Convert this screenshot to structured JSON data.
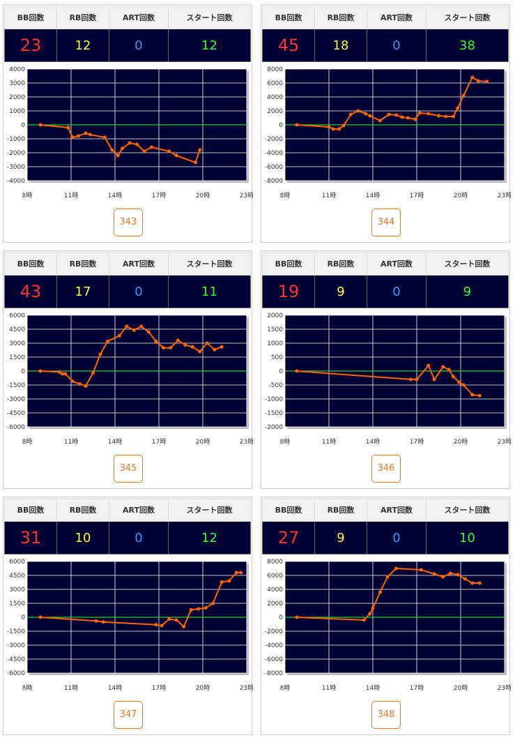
{
  "headers": {
    "bb": "BB回数",
    "rb": "RB回数",
    "art": "ART回数",
    "start": "スタート回数"
  },
  "colors": {
    "bg": "#000033",
    "line": "#ff6600",
    "zero": "#33cc33",
    "bb": "#ff3333",
    "rb": "#ffff33",
    "art": "#3399ff",
    "start": "#33ff33",
    "button": "#e87722"
  },
  "cards": [
    {
      "machine": "343",
      "bb": "23",
      "rb": "12",
      "art": "0",
      "start": "12"
    },
    {
      "machine": "344",
      "bb": "45",
      "rb": "18",
      "art": "0",
      "start": "38"
    },
    {
      "machine": "345",
      "bb": "43",
      "rb": "17",
      "art": "0",
      "start": "11"
    },
    {
      "machine": "346",
      "bb": "19",
      "rb": "9",
      "art": "0",
      "start": "9"
    },
    {
      "machine": "347",
      "bb": "31",
      "rb": "10",
      "art": "0",
      "start": "12"
    },
    {
      "machine": "348",
      "bb": "27",
      "rb": "9",
      "art": "0",
      "start": "10"
    }
  ],
  "chart_data": [
    {
      "type": "line",
      "machine": "343",
      "xlim": [
        8,
        23
      ],
      "x_ticks": [
        8,
        11,
        14,
        17,
        20,
        23
      ],
      "x_tick_labels": [
        "8時",
        "11時",
        "14時",
        "17時",
        "20時",
        "23時"
      ],
      "ylim": [
        -4000,
        4000
      ],
      "y_ticks": [
        -4000,
        -3000,
        -2000,
        -1000,
        0,
        1000,
        2000,
        3000,
        4000
      ],
      "series": [
        {
          "x": [
            8.9,
            10.8,
            11.1,
            11.5,
            12.0,
            12.3,
            13.3,
            13.8,
            14.2,
            14.5,
            15.0,
            15.5,
            16.0,
            16.5,
            17.7,
            18.2,
            19.5,
            19.8
          ],
          "y": [
            0,
            -200,
            -900,
            -800,
            -600,
            -700,
            -900,
            -1800,
            -2200,
            -1700,
            -1300,
            -1400,
            -1900,
            -1600,
            -1900,
            -2200,
            -2700,
            -1800
          ]
        }
      ]
    },
    {
      "type": "line",
      "machine": "344",
      "xlim": [
        8,
        23
      ],
      "x_ticks": [
        8,
        11,
        14,
        17,
        20,
        23
      ],
      "x_tick_labels": [
        "8時",
        "11時",
        "14時",
        "17時",
        "20時",
        "23時"
      ],
      "ylim": [
        -8000,
        8000
      ],
      "y_ticks": [
        -8000,
        -6000,
        -4000,
        -2000,
        0,
        2000,
        4000,
        6000,
        8000
      ],
      "series": [
        {
          "x": [
            8.8,
            11.0,
            11.3,
            11.7,
            12.0,
            12.5,
            13.0,
            13.5,
            13.8,
            14.5,
            15.1,
            15.6,
            16.0,
            16.4,
            16.9,
            17.2,
            17.8,
            18.5,
            19.0,
            19.5,
            19.8,
            20.2,
            20.8,
            21.2,
            21.8
          ],
          "y": [
            0,
            -300,
            -600,
            -600,
            -100,
            1500,
            2000,
            1600,
            1300,
            600,
            1500,
            1400,
            1100,
            1000,
            800,
            1700,
            1600,
            1300,
            1200,
            1200,
            2400,
            4200,
            6800,
            6300,
            6200
          ]
        }
      ]
    },
    {
      "type": "line",
      "machine": "345",
      "xlim": [
        8,
        23
      ],
      "x_ticks": [
        8,
        11,
        14,
        17,
        20,
        23
      ],
      "x_tick_labels": [
        "8時",
        "11時",
        "14時",
        "17時",
        "20時",
        "23時"
      ],
      "ylim": [
        -6000,
        6000
      ],
      "y_ticks": [
        -6000,
        -4500,
        -3000,
        -1500,
        0,
        1500,
        3000,
        4500,
        6000
      ],
      "series": [
        {
          "x": [
            8.9,
            10.2,
            10.4,
            10.6,
            11.1,
            11.6,
            12.0,
            12.5,
            13.0,
            13.5,
            14.3,
            14.8,
            15.3,
            15.8,
            16.3,
            16.8,
            17.3,
            17.8,
            18.3,
            18.8,
            19.3,
            19.8,
            20.3,
            20.8,
            21.3
          ],
          "y": [
            0,
            -100,
            -300,
            -300,
            -1100,
            -1400,
            -1600,
            -200,
            1800,
            3200,
            3800,
            4800,
            4400,
            4800,
            4200,
            3200,
            2500,
            2500,
            3300,
            2800,
            2600,
            2100,
            3000,
            2300,
            2600
          ]
        }
      ]
    },
    {
      "type": "line",
      "machine": "346",
      "xlim": [
        8,
        23
      ],
      "x_ticks": [
        8,
        11,
        14,
        17,
        20,
        23
      ],
      "x_tick_labels": [
        "8時",
        "11時",
        "14時",
        "17時",
        "20時",
        "23時"
      ],
      "ylim": [
        -2000,
        2000
      ],
      "y_ticks": [
        -2000,
        -1500,
        -1000,
        -500,
        0,
        500,
        1000,
        1500,
        2000
      ],
      "series": [
        {
          "x": [
            8.8,
            16.6,
            17.0,
            17.8,
            18.2,
            18.8,
            19.2,
            19.5,
            19.9,
            20.2,
            20.8,
            21.3
          ],
          "y": [
            0,
            -300,
            -300,
            200,
            -300,
            150,
            50,
            -200,
            -400,
            -500,
            -850,
            -880
          ]
        }
      ]
    },
    {
      "type": "line",
      "machine": "347",
      "xlim": [
        8,
        23
      ],
      "x_ticks": [
        8,
        11,
        14,
        17,
        20,
        23
      ],
      "x_tick_labels": [
        "8時",
        "11時",
        "14時",
        "17時",
        "20時",
        "23時"
      ],
      "ylim": [
        -6000,
        6000
      ],
      "y_ticks": [
        -6000,
        -4500,
        -3000,
        -1500,
        0,
        1500,
        3000,
        4500,
        6000
      ],
      "series": [
        {
          "x": [
            8.9,
            12.7,
            13.2,
            16.8,
            17.2,
            17.7,
            18.2,
            18.7,
            19.2,
            19.7,
            20.2,
            20.7,
            21.3,
            21.8,
            22.3,
            22.6
          ],
          "y": [
            0,
            -400,
            -500,
            -800,
            -900,
            -200,
            -300,
            -1000,
            800,
            900,
            1000,
            1500,
            3800,
            3900,
            4800,
            4800
          ]
        }
      ]
    },
    {
      "type": "line",
      "machine": "348",
      "xlim": [
        8,
        23
      ],
      "x_ticks": [
        8,
        11,
        14,
        17,
        20,
        23
      ],
      "x_tick_labels": [
        "8時",
        "11時",
        "14時",
        "17時",
        "20時",
        "23時"
      ],
      "ylim": [
        -8000,
        8000
      ],
      "y_ticks": [
        -8000,
        -6000,
        -4000,
        -2000,
        0,
        2000,
        4000,
        6000,
        8000
      ],
      "series": [
        {
          "x": [
            8.8,
            13.4,
            13.8,
            14.0,
            14.5,
            15.0,
            15.6,
            17.3,
            18.2,
            18.8,
            19.3,
            19.8,
            20.3,
            20.8,
            21.3
          ],
          "y": [
            0,
            -400,
            500,
            1300,
            3600,
            5800,
            7000,
            6800,
            6200,
            5800,
            6300,
            6100,
            5500,
            4900,
            4900
          ]
        }
      ]
    }
  ]
}
